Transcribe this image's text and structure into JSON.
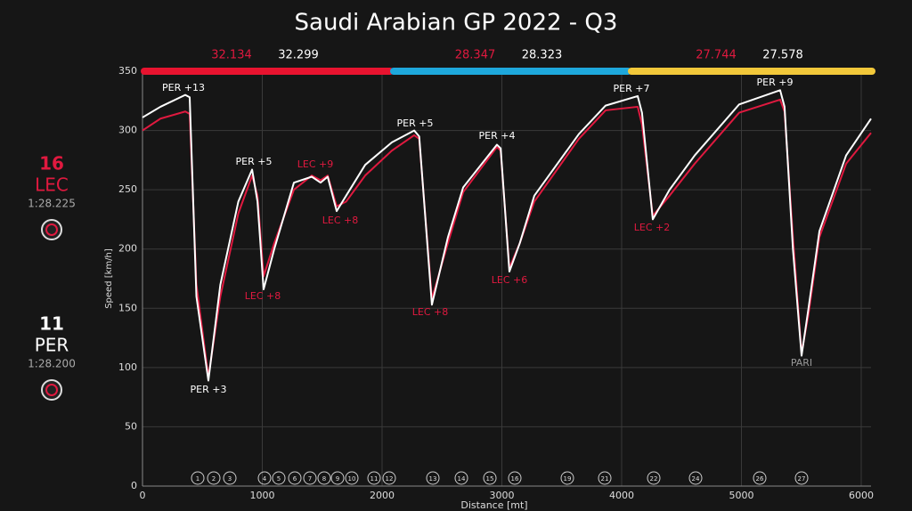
{
  "chart_data": {
    "type": "line",
    "title": "Saudi Arabian GP 2022 - Q3",
    "x_label": "Distance [mt]",
    "y_label": "Speed [km/h]",
    "x": [
      0,
      150,
      357,
      394,
      450,
      550,
      650,
      800,
      915,
      960,
      1011,
      1100,
      1264,
      1413,
      1487,
      1546,
      1621,
      1700,
      1859,
      2082,
      2268,
      2310,
      2416,
      2550,
      2677,
      2959,
      2990,
      3063,
      3150,
      3271,
      3643,
      3866,
      4134,
      4170,
      4260,
      4400,
      4610,
      4981,
      5323,
      5360,
      5430,
      5502,
      5560,
      5651,
      5874,
      6082
    ],
    "series": [
      {
        "name": "LEC",
        "number": "16",
        "lap": "1:28.225",
        "color": "#e0193f",
        "values": [
          300,
          310,
          316,
          314,
          170,
          92,
          160,
          230,
          262,
          245,
          177,
          205,
          250,
          262,
          258,
          262,
          236,
          240,
          262,
          283,
          296,
          293,
          158,
          205,
          248,
          286,
          283,
          184,
          205,
          240,
          293,
          317,
          320,
          305,
          228,
          245,
          272,
          315,
          326,
          316,
          210,
          112,
          145,
          210,
          272,
          298
        ]
      },
      {
        "name": "PER",
        "number": "11",
        "lap": "1:28.200",
        "color": "#ffffff",
        "values": [
          311,
          320,
          330,
          328,
          160,
          89,
          170,
          240,
          267,
          240,
          166,
          200,
          256,
          261,
          256,
          261,
          232,
          245,
          271,
          290,
          300,
          295,
          153,
          210,
          252,
          288,
          285,
          181,
          205,
          245,
          297,
          321,
          329,
          315,
          225,
          250,
          279,
          322,
          334,
          320,
          200,
          110,
          150,
          215,
          279,
          310
        ]
      }
    ],
    "xlim": [
      0,
      6082
    ],
    "ylim": [
      0,
      350
    ],
    "xticks": [
      0,
      1000,
      2000,
      3000,
      4000,
      5000,
      6000
    ],
    "yticks": [
      0,
      50,
      100,
      150,
      200,
      250,
      300,
      350
    ],
    "grid": true,
    "sectors": [
      {
        "color": "#e8132f",
        "times": [
          "32.134",
          "32.299"
        ]
      },
      {
        "color": "#1ea8dc",
        "times": [
          "28.347",
          "28.323"
        ]
      },
      {
        "color": "#f2c83a",
        "times": [
          "27.744",
          "27.578"
        ]
      }
    ],
    "annotations": [
      "PER +13",
      "PER +3",
      "PER +5",
      "LEC +8",
      "LEC +9",
      "LEC +8",
      "PER +5",
      "LEC +8",
      "PER +4",
      "LEC +6",
      "PER +7",
      "LEC +2",
      "PER +9",
      "PARI"
    ],
    "turns": [
      "1",
      "2",
      "3",
      "4",
      "5",
      "6",
      "7",
      "8",
      "9",
      "10",
      "11",
      "12",
      "13",
      "14",
      "15",
      "16",
      "19",
      "21",
      "22",
      "24",
      "26",
      "27"
    ]
  }
}
